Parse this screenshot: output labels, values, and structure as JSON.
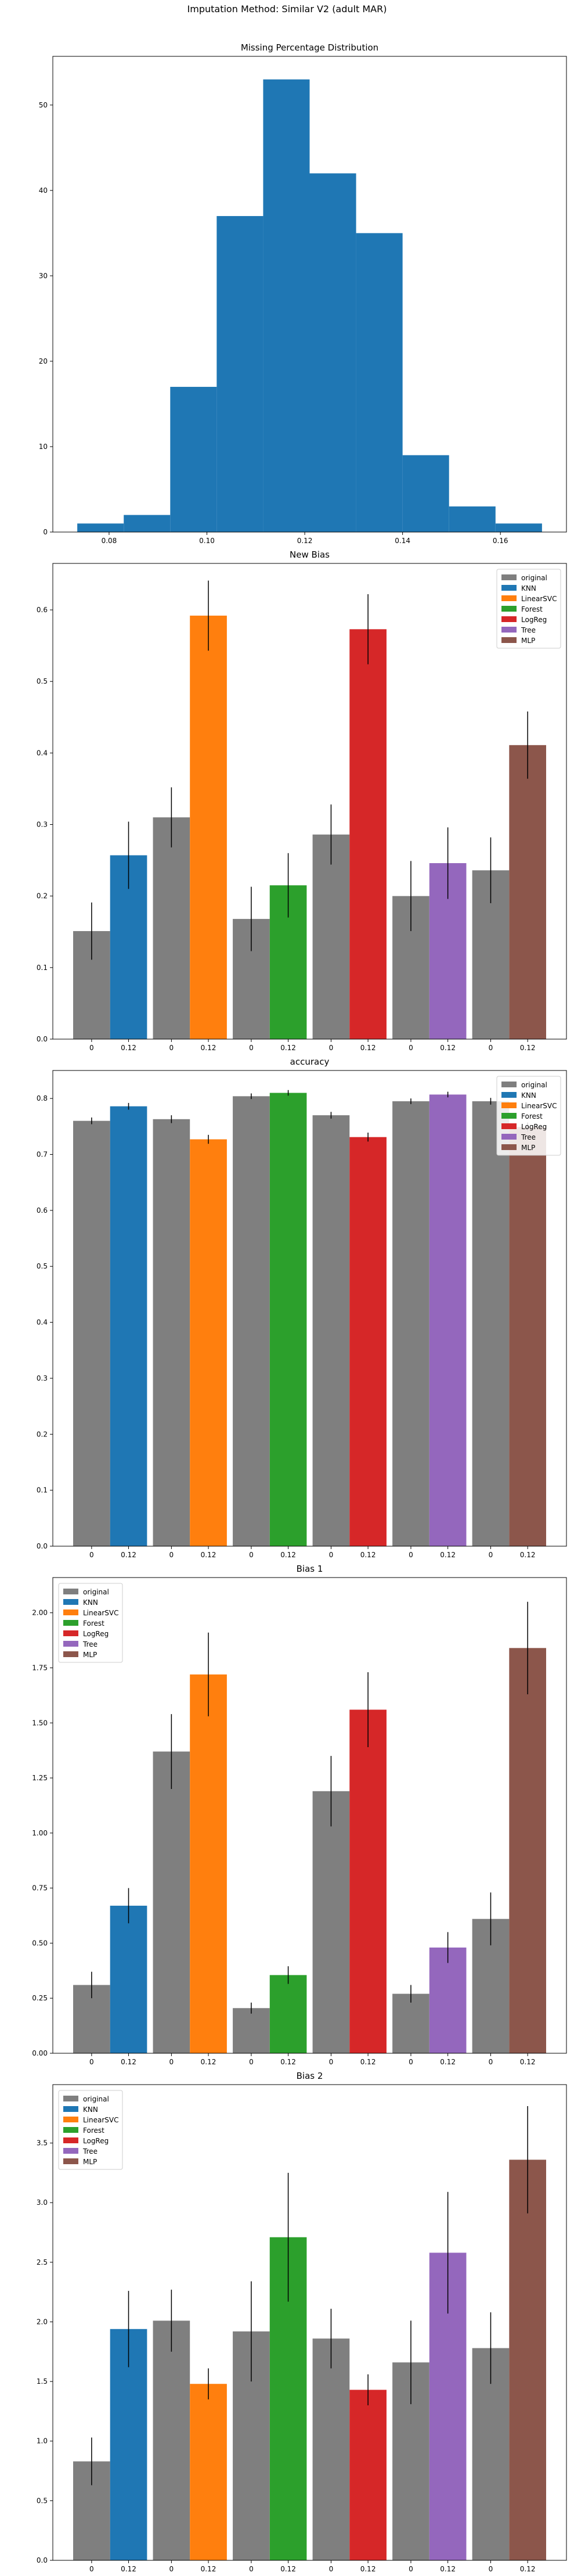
{
  "figure_title": "Imputation Method: Similar V2 (adult MAR)",
  "colors": {
    "original": "#7f7f7f",
    "KNN": "#1f77b4",
    "LinearSVC": "#ff7f0e",
    "Forest": "#2ca02c",
    "LogReg": "#d62728",
    "Tree": "#9467bd",
    "MLP": "#8c564b"
  },
  "chart_data": [
    {
      "type": "bar",
      "subtype": "histogram",
      "title": "Missing Percentage Distribution",
      "xlim": [
        0.0685,
        0.1735
      ],
      "ylim": [
        0,
        55.7
      ],
      "bins": [
        {
          "x0": 0.0735,
          "x1": 0.083,
          "count": 1
        },
        {
          "x0": 0.083,
          "x1": 0.0925,
          "count": 2
        },
        {
          "x0": 0.0925,
          "x1": 0.102,
          "count": 17
        },
        {
          "x0": 0.102,
          "x1": 0.1115,
          "count": 37
        },
        {
          "x0": 0.1115,
          "x1": 0.121,
          "count": 53
        },
        {
          "x0": 0.121,
          "x1": 0.1305,
          "count": 42
        },
        {
          "x0": 0.1305,
          "x1": 0.14,
          "count": 35
        },
        {
          "x0": 0.14,
          "x1": 0.1495,
          "count": 9
        },
        {
          "x0": 0.1495,
          "x1": 0.159,
          "count": 3
        },
        {
          "x0": 0.159,
          "x1": 0.1685,
          "count": 1
        }
      ],
      "xticks": [
        0.08,
        0.1,
        0.12,
        0.14,
        0.16
      ],
      "xtick_labels": [
        "0.08",
        "0.10",
        "0.12",
        "0.14",
        "0.16"
      ],
      "yticks": [
        0,
        10,
        20,
        30,
        40,
        50
      ],
      "ytick_labels": [
        "0",
        "10",
        "20",
        "30",
        "40",
        "50"
      ],
      "color": "#1f77b4"
    },
    {
      "type": "bar",
      "title": "New Bias",
      "categories": [
        "0",
        "0.12",
        "0",
        "0.12",
        "0",
        "0.12",
        "0",
        "0.12",
        "0",
        "0.12",
        "0",
        "0.12"
      ],
      "ylim": [
        0,
        0.665
      ],
      "yticks": [
        0.0,
        0.1,
        0.2,
        0.3,
        0.4,
        0.5,
        0.6
      ],
      "ytick_labels": [
        "0.0",
        "0.1",
        "0.2",
        "0.3",
        "0.4",
        "0.5",
        "0.6"
      ],
      "legend": {
        "placement": "top-right",
        "entries": [
          "original",
          "KNN",
          "LinearSVC",
          "Forest",
          "LogReg",
          "Tree",
          "MLP"
        ]
      },
      "groups": [
        {
          "method": "KNN",
          "original": 0.151,
          "original_err": 0.04,
          "imputed": 0.257,
          "imputed_err": 0.047
        },
        {
          "method": "LinearSVC",
          "original": 0.31,
          "original_err": 0.042,
          "imputed": 0.592,
          "imputed_err": 0.049
        },
        {
          "method": "Forest",
          "original": 0.168,
          "original_err": 0.045,
          "imputed": 0.215,
          "imputed_err": 0.045
        },
        {
          "method": "LogReg",
          "original": 0.286,
          "original_err": 0.042,
          "imputed": 0.573,
          "imputed_err": 0.049
        },
        {
          "method": "Tree",
          "original": 0.2,
          "original_err": 0.049,
          "imputed": 0.246,
          "imputed_err": 0.05
        },
        {
          "method": "MLP",
          "original": 0.236,
          "original_err": 0.046,
          "imputed": 0.411,
          "imputed_err": 0.047
        }
      ]
    },
    {
      "type": "bar",
      "title": "accuracy",
      "categories": [
        "0",
        "0.12",
        "0",
        "0.12",
        "0",
        "0.12",
        "0",
        "0.12",
        "0",
        "0.12",
        "0",
        "0.12"
      ],
      "ylim": [
        0,
        0.85
      ],
      "yticks": [
        0.0,
        0.1,
        0.2,
        0.3,
        0.4,
        0.5,
        0.6,
        0.7,
        0.8
      ],
      "ytick_labels": [
        "0.0",
        "0.1",
        "0.2",
        "0.3",
        "0.4",
        "0.5",
        "0.6",
        "0.7",
        "0.8"
      ],
      "legend": {
        "placement": "top-right",
        "entries": [
          "original",
          "KNN",
          "LinearSVC",
          "Forest",
          "LogReg",
          "Tree",
          "MLP"
        ]
      },
      "groups": [
        {
          "method": "KNN",
          "original": 0.76,
          "original_err": 0.006,
          "imputed": 0.786,
          "imputed_err": 0.006
        },
        {
          "method": "LinearSVC",
          "original": 0.763,
          "original_err": 0.007,
          "imputed": 0.727,
          "imputed_err": 0.008
        },
        {
          "method": "Forest",
          "original": 0.804,
          "original_err": 0.005,
          "imputed": 0.81,
          "imputed_err": 0.005
        },
        {
          "method": "LogReg",
          "original": 0.77,
          "original_err": 0.006,
          "imputed": 0.731,
          "imputed_err": 0.008
        },
        {
          "method": "Tree",
          "original": 0.795,
          "original_err": 0.005,
          "imputed": 0.807,
          "imputed_err": 0.005
        },
        {
          "method": "MLP",
          "original": 0.795,
          "original_err": 0.006,
          "imputed": 0.749,
          "imputed_err": 0.008
        }
      ]
    },
    {
      "type": "bar",
      "title": "Bias 1",
      "categories": [
        "0",
        "0.12",
        "0",
        "0.12",
        "0",
        "0.12",
        "0",
        "0.12",
        "0",
        "0.12",
        "0",
        "0.12"
      ],
      "ylim": [
        0,
        2.16
      ],
      "yticks": [
        0.0,
        0.25,
        0.5,
        0.75,
        1.0,
        1.25,
        1.5,
        1.75,
        2.0
      ],
      "ytick_labels": [
        "0.00",
        "0.25",
        "0.50",
        "0.75",
        "1.00",
        "1.25",
        "1.50",
        "1.75",
        "2.00"
      ],
      "legend": {
        "placement": "top-left",
        "entries": [
          "original",
          "KNN",
          "LinearSVC",
          "Forest",
          "LogReg",
          "Tree",
          "MLP"
        ]
      },
      "groups": [
        {
          "method": "KNN",
          "original": 0.31,
          "original_err": 0.06,
          "imputed": 0.67,
          "imputed_err": 0.08
        },
        {
          "method": "LinearSVC",
          "original": 1.37,
          "original_err": 0.17,
          "imputed": 1.72,
          "imputed_err": 0.19
        },
        {
          "method": "Forest",
          "original": 0.205,
          "original_err": 0.025,
          "imputed": 0.355,
          "imputed_err": 0.04
        },
        {
          "method": "LogReg",
          "original": 1.19,
          "original_err": 0.16,
          "imputed": 1.56,
          "imputed_err": 0.17
        },
        {
          "method": "Tree",
          "original": 0.27,
          "original_err": 0.04,
          "imputed": 0.48,
          "imputed_err": 0.07
        },
        {
          "method": "MLP",
          "original": 0.61,
          "original_err": 0.12,
          "imputed": 1.84,
          "imputed_err": 0.21
        }
      ]
    },
    {
      "type": "bar",
      "title": "Bias 2",
      "categories": [
        "0",
        "0.12",
        "0",
        "0.12",
        "0",
        "0.12",
        "0",
        "0.12",
        "0",
        "0.12",
        "0",
        "0.12"
      ],
      "ylim": [
        0,
        3.99
      ],
      "yticks": [
        0.0,
        0.5,
        1.0,
        1.5,
        2.0,
        2.5,
        3.0,
        3.5
      ],
      "ytick_labels": [
        "0.0",
        "0.5",
        "1.0",
        "1.5",
        "2.0",
        "2.5",
        "3.0",
        "3.5"
      ],
      "legend": {
        "placement": "top-left",
        "entries": [
          "original",
          "KNN",
          "LinearSVC",
          "Forest",
          "LogReg",
          "Tree",
          "MLP"
        ]
      },
      "groups": [
        {
          "method": "KNN",
          "original": 0.83,
          "original_err": 0.2,
          "imputed": 1.94,
          "imputed_err": 0.32
        },
        {
          "method": "LinearSVC",
          "original": 2.01,
          "original_err": 0.26,
          "imputed": 1.48,
          "imputed_err": 0.13
        },
        {
          "method": "Forest",
          "original": 1.92,
          "original_err": 0.42,
          "imputed": 2.71,
          "imputed_err": 0.54
        },
        {
          "method": "LogReg",
          "original": 1.86,
          "original_err": 0.25,
          "imputed": 1.43,
          "imputed_err": 0.13
        },
        {
          "method": "Tree",
          "original": 1.66,
          "original_err": 0.35,
          "imputed": 2.58,
          "imputed_err": 0.51
        },
        {
          "method": "MLP",
          "original": 1.78,
          "original_err": 0.3,
          "imputed": 3.36,
          "imputed_err": 0.45
        }
      ]
    }
  ]
}
